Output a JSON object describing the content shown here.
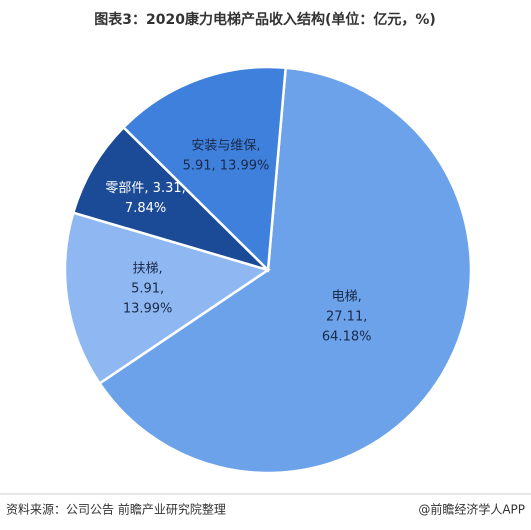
{
  "chart_data": {
    "type": "pie",
    "title": "图表3：2020康力电梯产品收入结构(单位：亿元，%)",
    "categories": [
      "电梯",
      "扶梯",
      "零部件",
      "安装与维保"
    ],
    "amounts": [
      27.11,
      5.91,
      3.31,
      5.91
    ],
    "values": [
      64.18,
      13.99,
      7.84,
      13.99
    ],
    "value_labels": [
      "64.18%",
      "13.99%",
      "7.84%",
      "13.99%"
    ],
    "colors": [
      "#6ca2ea",
      "#8fb8f2",
      "#1b4b96",
      "#3f80dc"
    ],
    "source": "资料来源：公司公告 前瞻产业研究院整理",
    "credit": "@前瞻经济学人APP"
  }
}
